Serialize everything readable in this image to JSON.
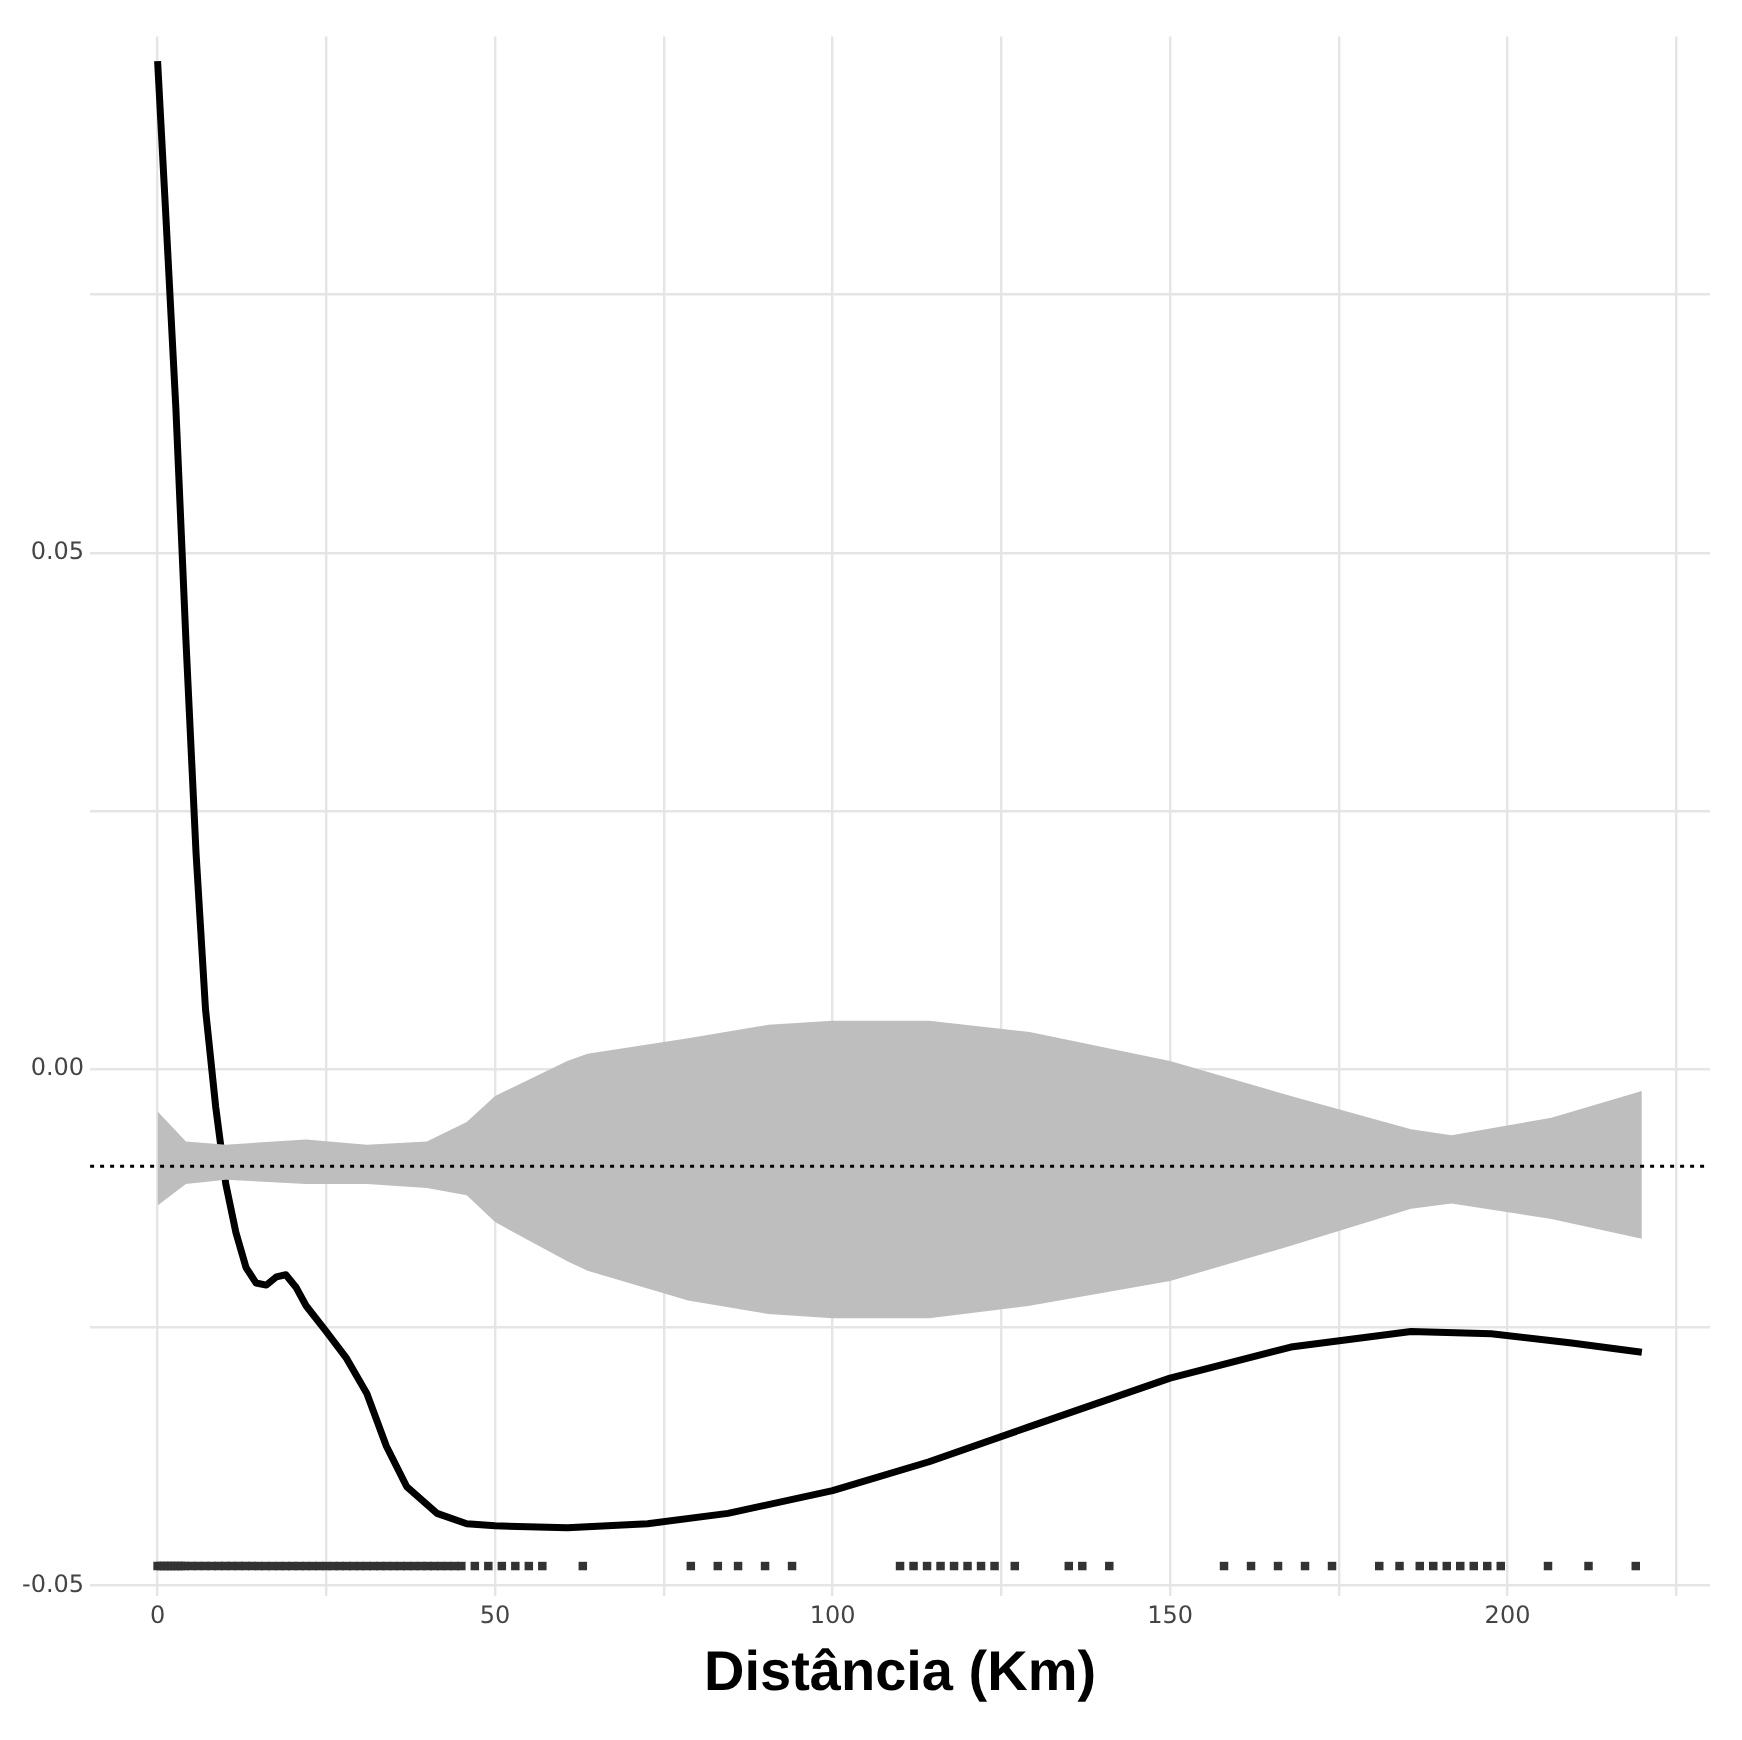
{
  "chart_data": {
    "type": "line",
    "xlabel": "Distância (Km)",
    "xlim": [
      -10,
      230
    ],
    "ylim": [
      -0.051,
      0.1
    ],
    "xticks": [
      0,
      {
        "value": 25,
        "label": null
      },
      50,
      {
        "value": 75,
        "label": null
      },
      100,
      {
        "value": 125,
        "label": null
      },
      150,
      {
        "value": 175,
        "label": null
      },
      200,
      {
        "value": 225,
        "label": null
      }
    ],
    "yticks": [
      -0.05,
      {
        "value": -0.025,
        "label": null
      },
      {
        "value": 0,
        "label": "0.00"
      },
      {
        "value": 0.025,
        "label": null
      },
      0.05,
      {
        "value": 0.075,
        "label": null
      }
    ],
    "grid": true,
    "legend": false,
    "ref_lines": [
      {
        "axis": "y",
        "value": -0.0094,
        "color": "#000000",
        "line_style": "dotted"
      }
    ],
    "series": [
      {
        "color": "#bebebe",
        "x": [
          0,
          4.2,
          10.1,
          22,
          31,
          39.9,
          45.8,
          50,
          60.7,
          63.7,
          78.6,
          90.5,
          100,
          114.3,
          129.2,
          150,
          167.9,
          185.7,
          191.7,
          206.5,
          219.9
        ],
        "values": [
          null,
          null,
          null,
          null,
          null,
          null,
          null,
          null,
          null,
          null,
          null,
          null,
          null,
          null,
          null,
          null,
          null,
          null,
          null,
          null,
          null
        ],
        "upper": [
          -0.0041,
          -0.007,
          -0.0073,
          -0.0068,
          -0.0073,
          -0.007,
          -0.0051,
          -0.0026,
          0.0008,
          0.0015,
          0.003,
          0.0043,
          0.0047,
          0.0047,
          0.0036,
          0.0008,
          -0.0026,
          -0.0058,
          -0.0064,
          -0.0047,
          -0.0021
        ],
        "lower": [
          -0.0132,
          -0.0111,
          -0.0107,
          -0.0111,
          -0.0111,
          -0.0115,
          -0.0122,
          -0.0148,
          -0.0186,
          -0.0195,
          -0.0224,
          -0.0237,
          -0.0241,
          -0.0241,
          -0.0229,
          -0.0205,
          -0.0171,
          -0.0135,
          -0.013,
          -0.0145,
          -0.0164
        ]
      },
      {
        "color": "#000000",
        "x": [
          0,
          1.2,
          2.7,
          4.2,
          5.7,
          7.1,
          8.6,
          10.1,
          11.6,
          13.1,
          14.6,
          16.1,
          17.6,
          19,
          20.5,
          22,
          25,
          28,
          31,
          33.9,
          36.9,
          41.4,
          45.8,
          50,
          60.7,
          72.6,
          84.5,
          100,
          114.3,
          129.2,
          150,
          167.9,
          185.7,
          197.6,
          209.5,
          219.9
        ],
        "values": [
          0.0976,
          0.0829,
          0.0641,
          0.0415,
          0.0209,
          0.0058,
          -0.0036,
          -0.0111,
          -0.0158,
          -0.0192,
          -0.0207,
          -0.0209,
          -0.0201,
          -0.0199,
          -0.0211,
          -0.0229,
          -0.0254,
          -0.028,
          -0.0314,
          -0.0365,
          -0.0404,
          -0.043,
          -0.044,
          -0.0442,
          -0.0444,
          -0.044,
          -0.043,
          -0.0408,
          -0.038,
          -0.0346,
          -0.0299,
          -0.0269,
          -0.0254,
          -0.0256,
          -0.0265,
          -0.0274
        ]
      },
      {
        "type": "scatter",
        "color": "#333333",
        "x": [
          0,
          0.5,
          1,
          1.5,
          2,
          2.5,
          3,
          3.5,
          4,
          5,
          6,
          7,
          8,
          9,
          10,
          11,
          12,
          13,
          14,
          15,
          16,
          17,
          18,
          19,
          20,
          21,
          22,
          23,
          24,
          25,
          26,
          27,
          28,
          29,
          30,
          31,
          32,
          33,
          34,
          35,
          36,
          37,
          38,
          39,
          40,
          41,
          42,
          43,
          44,
          45,
          47,
          49,
          51,
          53,
          55,
          57,
          63,
          79,
          83,
          86,
          90,
          94,
          110,
          112,
          114,
          116,
          118,
          120,
          122,
          124,
          127,
          135,
          137,
          141,
          158,
          162,
          166,
          170,
          174,
          181,
          184,
          187,
          189,
          191,
          193,
          195,
          197,
          199,
          206,
          212,
          219
        ],
        "values": [
          -0.0481,
          -0.0481,
          -0.0481,
          -0.0481,
          -0.0481,
          -0.0481,
          -0.0481,
          -0.0481,
          -0.0481,
          -0.0481,
          -0.0481,
          -0.0481,
          -0.0481,
          -0.0481,
          -0.0481,
          -0.0481,
          -0.0481,
          -0.0481,
          -0.0481,
          -0.0481,
          -0.0481,
          -0.0481,
          -0.0481,
          -0.0481,
          -0.0481,
          -0.0481,
          -0.0481,
          -0.0481,
          -0.0481,
          -0.0481,
          -0.0481,
          -0.0481,
          -0.0481,
          -0.0481,
          -0.0481,
          -0.0481,
          -0.0481,
          -0.0481,
          -0.0481,
          -0.0481,
          -0.0481,
          -0.0481,
          -0.0481,
          -0.0481,
          -0.0481,
          -0.0481,
          -0.0481,
          -0.0481,
          -0.0481,
          -0.0481,
          -0.0481,
          -0.0481,
          -0.0481,
          -0.0481,
          -0.0481,
          -0.0481,
          -0.0481,
          -0.0481,
          -0.0481,
          -0.0481,
          -0.0481,
          -0.0481,
          -0.0481,
          -0.0481,
          -0.0481,
          -0.0481,
          -0.0481,
          -0.0481,
          -0.0481,
          -0.0481,
          -0.0481,
          -0.0481,
          -0.0481,
          -0.0481,
          -0.0481,
          -0.0481,
          -0.0481,
          -0.0481,
          -0.0481,
          -0.0481,
          -0.0481,
          -0.0481,
          -0.0481,
          -0.0481,
          -0.0481,
          -0.0481,
          -0.0481,
          -0.0481,
          -0.0481,
          -0.0481,
          -0.0481
        ]
      }
    ]
  }
}
